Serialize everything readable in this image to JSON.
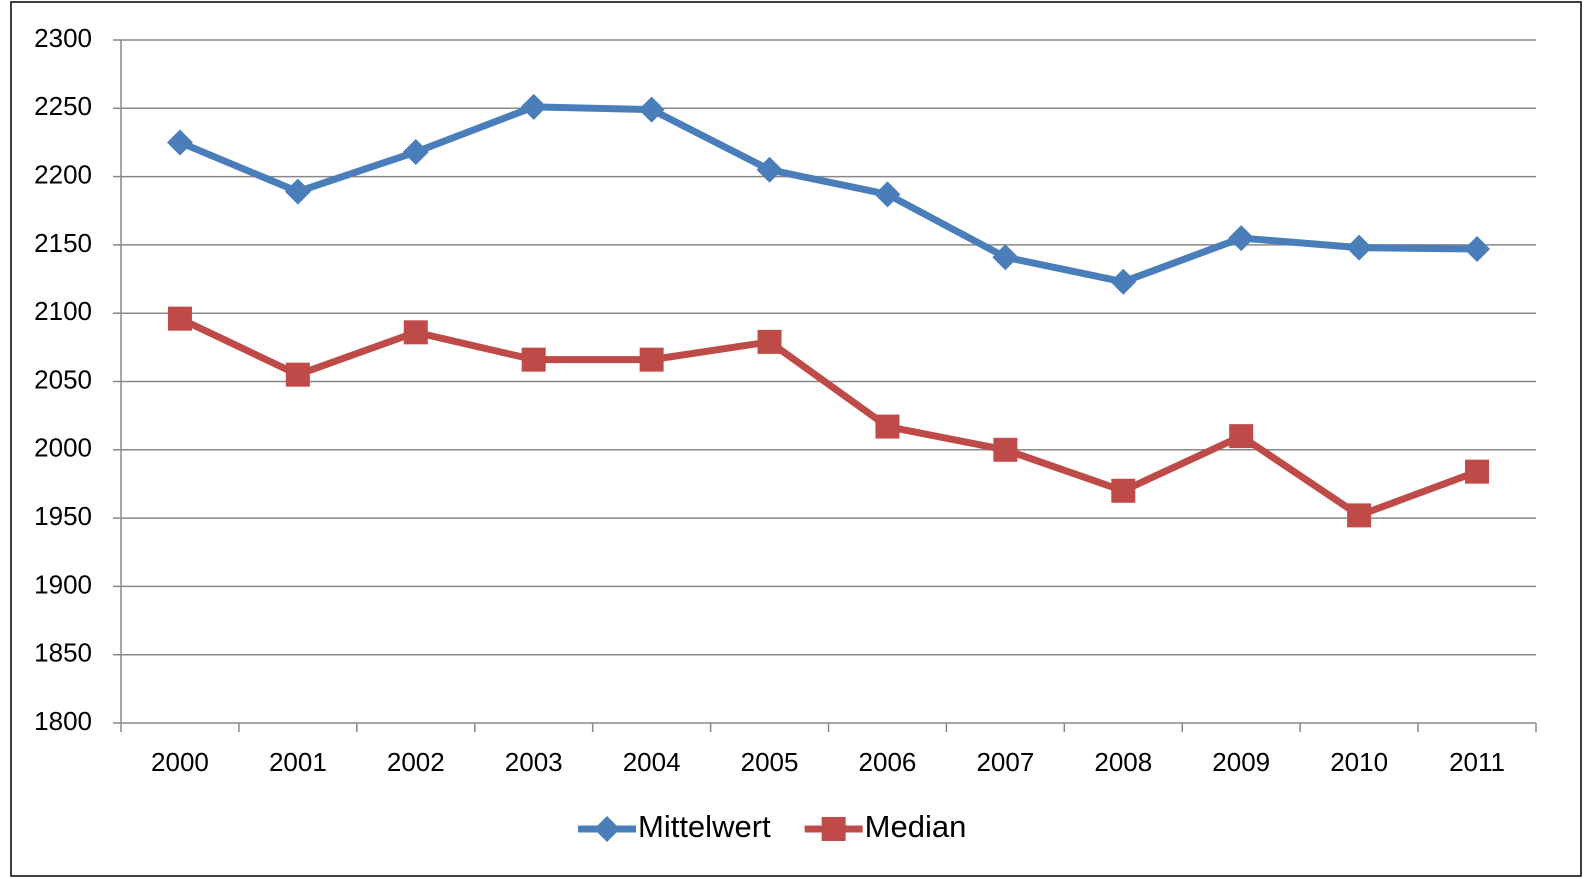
{
  "chart_data": {
    "type": "line",
    "categories": [
      "2000",
      "2001",
      "2002",
      "2003",
      "2004",
      "2005",
      "2006",
      "2007",
      "2008",
      "2009",
      "2010",
      "2011"
    ],
    "series": [
      {
        "name": "Mittelwert",
        "color": "#4a7ebb",
        "marker": "diamond",
        "values": [
          2225,
          2189,
          2218,
          2251,
          2249,
          2205,
          2187,
          2141,
          2123,
          2155,
          2148,
          2147
        ]
      },
      {
        "name": "Median",
        "color": "#be4b48",
        "marker": "square",
        "values": [
          2096,
          2055,
          2086,
          2066,
          2066,
          2079,
          2017,
          2000,
          1970,
          2010,
          1952,
          1984
        ]
      }
    ],
    "ylim": [
      1800,
      2300
    ],
    "yticks": [
      1800,
      1850,
      1900,
      1950,
      2000,
      2050,
      2100,
      2150,
      2200,
      2250,
      2300
    ],
    "grid": true,
    "legend": "bottom"
  }
}
